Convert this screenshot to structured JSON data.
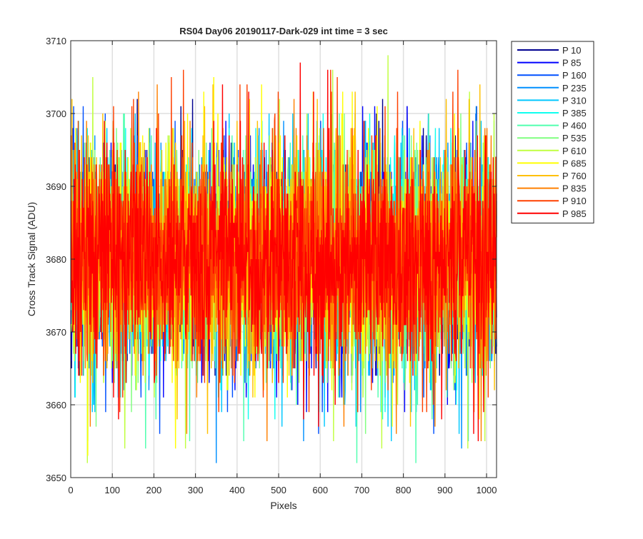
{
  "chart_data": {
    "type": "line",
    "title": "RS04 Day06 20190117-Dark-029 int time = 3 sec",
    "xlabel": "Pixels",
    "ylabel": "Cross Track Signal (ADU)",
    "xlim": [
      0,
      1024
    ],
    "ylim": [
      3650,
      3710
    ],
    "x_ticks": [
      0,
      100,
      200,
      300,
      400,
      500,
      600,
      700,
      800,
      900,
      1000
    ],
    "y_ticks": [
      3650,
      3660,
      3670,
      3680,
      3690,
      3700,
      3710
    ],
    "grid": true,
    "legend_position": "outside-top-right",
    "x_points": "1 to 1024 (one sample per pixel)",
    "signal_center": 3680,
    "signal_typical_range": [
      3665,
      3697
    ],
    "series": [
      {
        "name": "P 10",
        "color": "#00008f",
        "observed_min": 3664,
        "observed_max": 3702
      },
      {
        "name": "P 85",
        "color": "#0000ff",
        "observed_min": 3659,
        "observed_max": 3702
      },
      {
        "name": "P 160",
        "color": "#0050ff",
        "observed_min": 3656,
        "observed_max": 3701
      },
      {
        "name": "P 235",
        "color": "#0090ff",
        "observed_min": 3652,
        "observed_max": 3701
      },
      {
        "name": "P 310",
        "color": "#00c8ff",
        "observed_min": 3655,
        "observed_max": 3700
      },
      {
        "name": "P 385",
        "color": "#10ffef",
        "observed_min": 3658,
        "observed_max": 3701
      },
      {
        "name": "P 460",
        "color": "#50ffaf",
        "observed_min": 3651,
        "observed_max": 3700
      },
      {
        "name": "P 535",
        "color": "#80ff80",
        "observed_min": 3655,
        "observed_max": 3701
      },
      {
        "name": "P 610",
        "color": "#c0ff40",
        "observed_min": 3651,
        "observed_max": 3708
      },
      {
        "name": "P 685",
        "color": "#ffff00",
        "observed_min": 3653,
        "observed_max": 3705
      },
      {
        "name": "P 760",
        "color": "#ffc000",
        "observed_min": 3654,
        "observed_max": 3705
      },
      {
        "name": "P 835",
        "color": "#ff8000",
        "observed_min": 3655,
        "observed_max": 3706
      },
      {
        "name": "P 910",
        "color": "#ff4000",
        "observed_min": 3659,
        "observed_max": 3706
      },
      {
        "name": "P 985",
        "color": "#ff0000",
        "observed_min": 3655,
        "observed_max": 3707
      }
    ]
  }
}
